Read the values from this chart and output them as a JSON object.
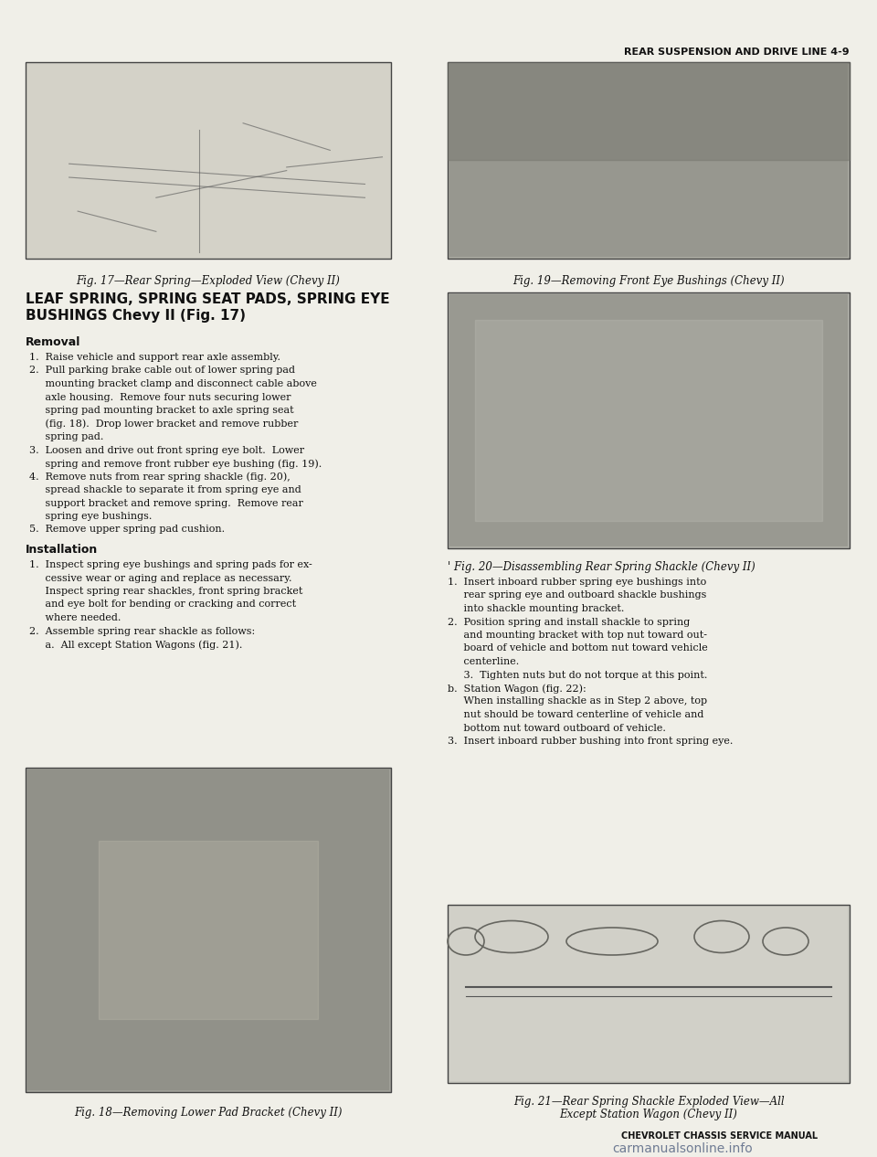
{
  "page_bg": "#f0efe8",
  "text_color": "#111111",
  "page_title": "REAR SUSPENSION AND DRIVE LINE 4-9",
  "fig17_caption": "Fig. 17—Rear Spring—Exploded View (Chevy II)",
  "fig19_caption": "Fig. 19—Removing Front Eye Bushings (Chevy II)",
  "fig20_caption": "Fig. 20—Disassembling Rear Spring Shackle (Chevy II)",
  "fig18_caption": "Fig. 18—Removing Lower Pad Bracket (Chevy II)",
  "fig21_caption_line1": "Fig. 21—Rear Spring Shackle Exploded View—All",
  "fig21_caption_line2": "Except Station Wagon (Chevy II)",
  "section_title_line1": "LEAF SPRING, SPRING SEAT PADS, SPRING EYE",
  "section_title_line2": "BUSHINGS Chevy II (Fig. 17)",
  "removal_title": "Removal",
  "removal_steps": [
    "1.  Raise vehicle and support rear axle assembly.",
    "2.  Pull parking brake cable out of lower spring pad",
    "     mounting bracket clamp and disconnect cable above",
    "     axle housing.  Remove four nuts securing lower",
    "     spring pad mounting bracket to axle spring seat",
    "     (fig. 18).  Drop lower bracket and remove rubber",
    "     spring pad.",
    "3.  Loosen and drive out front spring eye bolt.  Lower",
    "     spring and remove front rubber eye bushing (fig. 19).",
    "4.  Remove nuts from rear spring shackle (fig. 20),",
    "     spread shackle to separate it from spring eye and",
    "     support bracket and remove spring.  Remove rear",
    "     spring eye bushings.",
    "5.  Remove upper spring pad cushion."
  ],
  "installation_title": "Installation",
  "installation_steps": [
    "1.  Inspect spring eye bushings and spring pads for ex-",
    "     cessive wear or aging and replace as necessary.",
    "     Inspect spring rear shackles, front spring bracket",
    "     and eye bolt for bending or cracking and correct",
    "     where needed.",
    "2.  Assemble spring rear shackle as follows:",
    "     a.  All except Station Wagons (fig. 21)."
  ],
  "right_install_steps": [
    "1.  Insert inboard rubber spring eye bushings into",
    "     rear spring eye and outboard shackle bushings",
    "     into shackle mounting bracket.",
    "2.  Position spring and install shackle to spring",
    "     and mounting bracket with top nut toward out-",
    "     board of vehicle and bottom nut toward vehicle",
    "     centerline.",
    "     3.  Tighten nuts but do not torque at this point.",
    "b.  Station Wagon (fig. 22):",
    "     When installing shackle as in Step 2 above, top",
    "     nut should be toward centerline of vehicle and",
    "     bottom nut toward outboard of vehicle.",
    "3.  Insert inboard rubber bushing into front spring eye."
  ],
  "footer_brand": "CHEVROLET CHASSIS SERVICE MANUAL",
  "footer_web": "carmanualsonline.info",
  "img17_color": "#d4d2c8",
  "img19_color": "#a8a8a0",
  "img20_color": "#b0b0a8",
  "img18_color": "#a0a098",
  "img21_color": "#c8c8c0",
  "border_color": "#444444"
}
